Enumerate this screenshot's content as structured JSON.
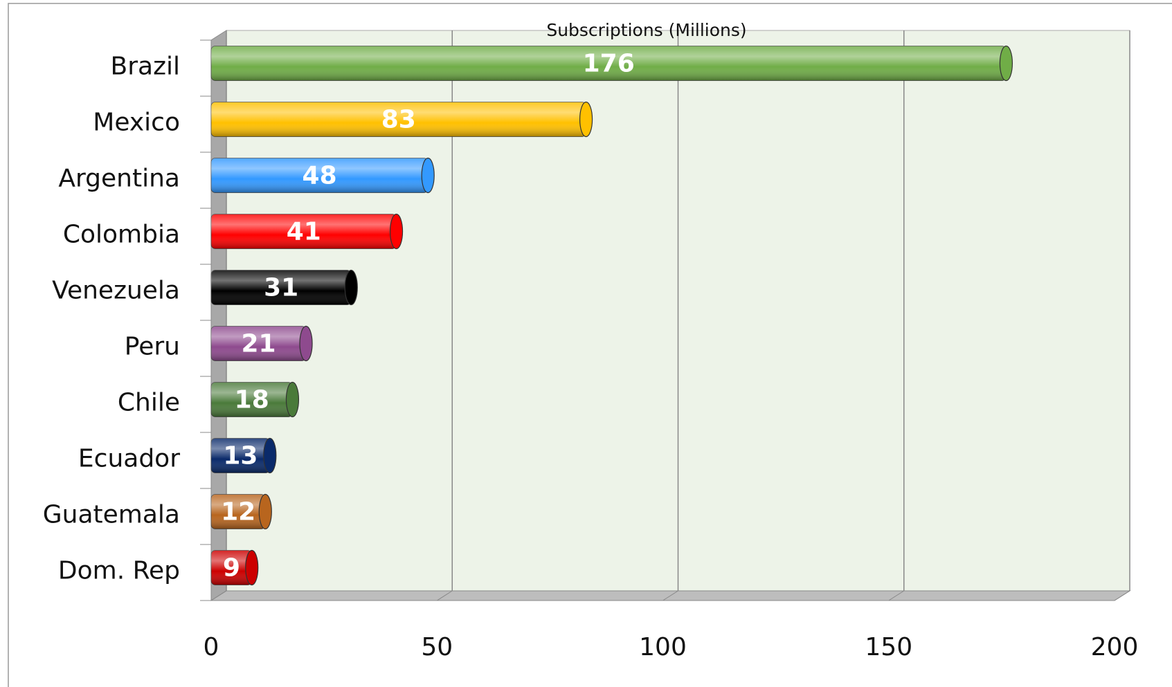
{
  "chart_data": {
    "type": "bar",
    "orientation": "horizontal",
    "title": "Subscriptions (Millions)",
    "categories": [
      "Brazil",
      "Mexico",
      "Argentina",
      "Colombia",
      "Venezuela",
      "Peru",
      "Chile",
      "Ecuador",
      "Guatemala",
      "Dom. Rep"
    ],
    "values": [
      176,
      83,
      48,
      41,
      31,
      21,
      18,
      13,
      12,
      9
    ],
    "colors": [
      "#70ad47",
      "#ffc000",
      "#3399ff",
      "#ff0000",
      "#000000",
      "#8e4a8e",
      "#4a7a3a",
      "#0a2a6a",
      "#b8651e",
      "#cc0000"
    ],
    "xlim": [
      0,
      200
    ],
    "xticks": [
      0,
      50,
      100,
      150,
      200
    ],
    "grid": true
  }
}
